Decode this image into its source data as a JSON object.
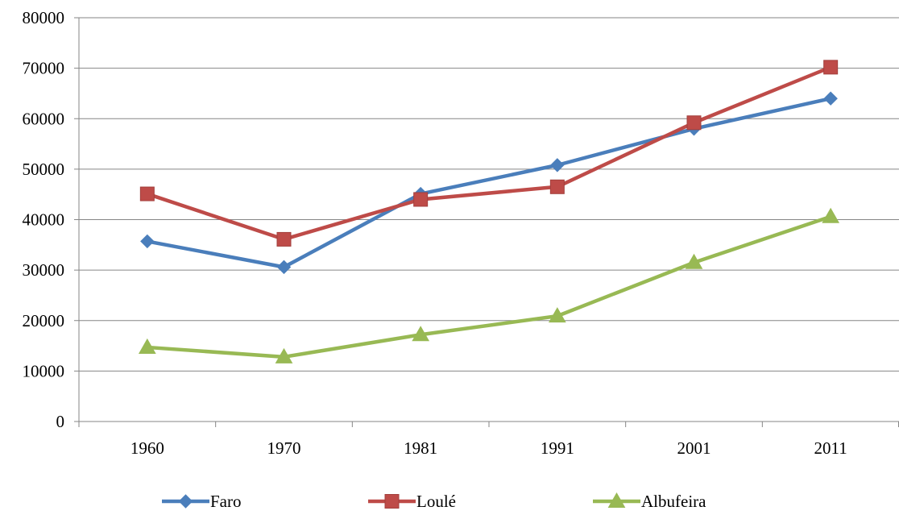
{
  "chart_data": {
    "type": "line",
    "title": "",
    "xlabel": "",
    "ylabel": "",
    "categories": [
      "1960",
      "1970",
      "1981",
      "1991",
      "2001",
      "2011"
    ],
    "ylim": [
      0,
      80000
    ],
    "yticks": [
      0,
      10000,
      20000,
      30000,
      40000,
      50000,
      60000,
      70000,
      80000
    ],
    "grid": true,
    "legend_position": "bottom",
    "series": [
      {
        "name": "Faro",
        "color": "#4a7ebb",
        "marker": "diamond",
        "values": [
          35700,
          30600,
          45100,
          50800,
          58000,
          64000
        ]
      },
      {
        "name": "Loulé",
        "color": "#be4b48",
        "marker": "square",
        "values": [
          45100,
          36100,
          44000,
          46500,
          59200,
          70200
        ]
      },
      {
        "name": "Albufeira",
        "color": "#98b954",
        "marker": "triangle",
        "values": [
          14700,
          12800,
          17200,
          20900,
          31500,
          40600
        ]
      }
    ]
  }
}
